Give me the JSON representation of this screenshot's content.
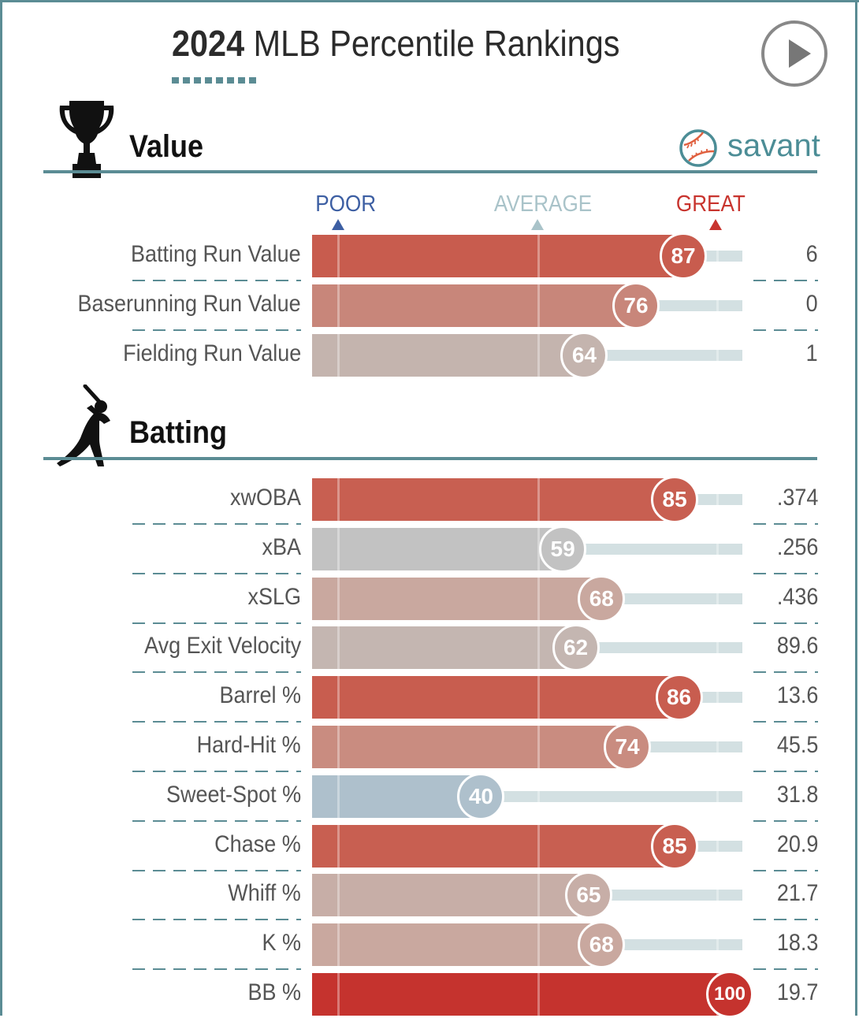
{
  "title": {
    "year": "2024",
    "rest": "MLB Percentile Rankings"
  },
  "brand": "savant",
  "icons": {
    "play": "play-icon",
    "trophy": "trophy-icon",
    "batter": "batter-silhouette-icon",
    "savant": "baseball-logo-icon"
  },
  "scale": {
    "poor": "POOR",
    "average": "AVERAGE",
    "great": "GREAT"
  },
  "colors": {
    "poor": "#3d5fa3",
    "average": "#a9c3c9",
    "great": "#c8342e",
    "accent": "#5b8c94"
  },
  "sections": {
    "value": "Value",
    "batting": "Batting"
  },
  "chart_data": {
    "type": "bar",
    "xlim": [
      0,
      100
    ],
    "groups": [
      {
        "name": "Value",
        "rows": [
          {
            "label": "Batting Run Value",
            "percentile": 87,
            "value": "6",
            "color": "#c85c4e"
          },
          {
            "label": "Baserunning Run Value",
            "percentile": 76,
            "value": "0",
            "color": "#c8867a"
          },
          {
            "label": "Fielding Run Value",
            "percentile": 64,
            "value": "1",
            "color": "#c4b4ae"
          }
        ]
      },
      {
        "name": "Batting",
        "rows": [
          {
            "label": "xwOBA",
            "percentile": 85,
            "value": ".374",
            "color": "#c85f51"
          },
          {
            "label": "xBA",
            "percentile": 59,
            "value": ".256",
            "color": "#c2c2c2"
          },
          {
            "label": "xSLG",
            "percentile": 68,
            "value": ".436",
            "color": "#c9a89f"
          },
          {
            "label": "Avg Exit Velocity",
            "percentile": 62,
            "value": "89.6",
            "color": "#c4b6b1"
          },
          {
            "label": "Barrel %",
            "percentile": 86,
            "value": "13.6",
            "color": "#c85d4f"
          },
          {
            "label": "Hard-Hit %",
            "percentile": 74,
            "value": "45.5",
            "color": "#c98c80"
          },
          {
            "label": "Sweet-Spot %",
            "percentile": 40,
            "value": "31.8",
            "color": "#aec0cc"
          },
          {
            "label": "Chase %",
            "percentile": 85,
            "value": "20.9",
            "color": "#c85f51"
          },
          {
            "label": "Whiff %",
            "percentile": 65,
            "value": "21.7",
            "color": "#c7aea7"
          },
          {
            "label": "K %",
            "percentile": 68,
            "value": "18.3",
            "color": "#c9a89f"
          },
          {
            "label": "BB %",
            "percentile": 100,
            "value": "19.7",
            "color": "#c5332e"
          }
        ]
      }
    ]
  }
}
